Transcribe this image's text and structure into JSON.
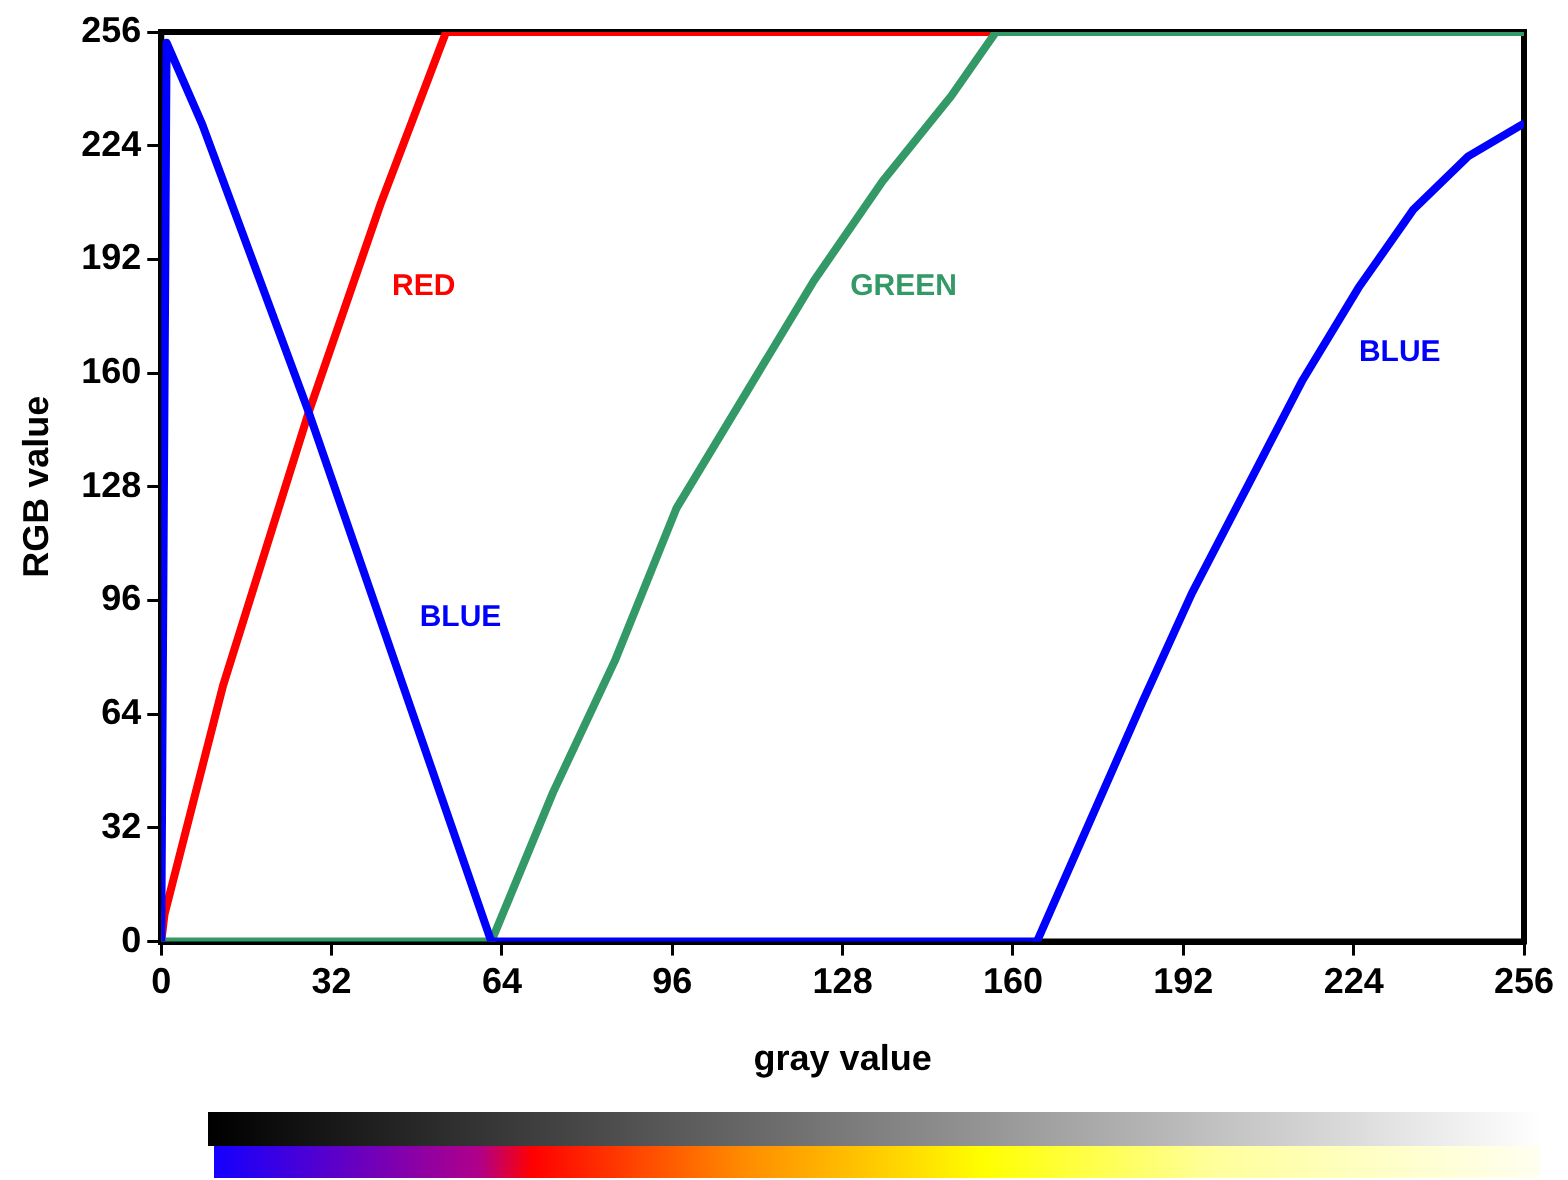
{
  "chart_data": {
    "type": "line",
    "xlabel": "gray value",
    "ylabel": "RGB value",
    "xlim": [
      0,
      256
    ],
    "ylim": [
      0,
      256
    ],
    "xticks": [
      0,
      32,
      64,
      96,
      128,
      160,
      192,
      224,
      256
    ],
    "yticks": [
      0,
      32,
      64,
      96,
      128,
      160,
      192,
      224,
      256
    ],
    "grid": false,
    "legend": false,
    "marker": "none",
    "line_style": "solid",
    "series": [
      {
        "name": "RED",
        "color": "#ff0000",
        "x": [
          0,
          0.6,
          11.6,
          27.7,
          41.3,
          53.5,
          156.8
        ],
        "values": [
          0,
          7.6,
          72,
          149,
          208,
          256,
          256
        ]
      },
      {
        "name": "GREEN",
        "color": "#339966",
        "x": [
          0,
          62,
          73.6,
          85.2,
          96.8,
          109.7,
          122.6,
          135.5,
          148.4,
          156.8,
          256
        ],
        "values": [
          0,
          0,
          42,
          79,
          122,
          154,
          186,
          214,
          238,
          256,
          256
        ]
      },
      {
        "name": "BLUE",
        "color": "#0000ff",
        "x": [
          0,
          1,
          7.7,
          27.7,
          62,
          164.5
        ],
        "values": [
          0,
          253,
          230,
          149,
          0,
          0
        ]
      },
      {
        "name": "BLUE",
        "color": "#0000ff",
        "x": [
          164.5,
          174.2,
          184.5,
          193.6,
          204,
          214.4,
          224.9,
          235.2,
          245.5,
          255.7
        ],
        "values": [
          0,
          33,
          68,
          98,
          128,
          158,
          184,
          206,
          221,
          230
        ]
      }
    ]
  }
}
